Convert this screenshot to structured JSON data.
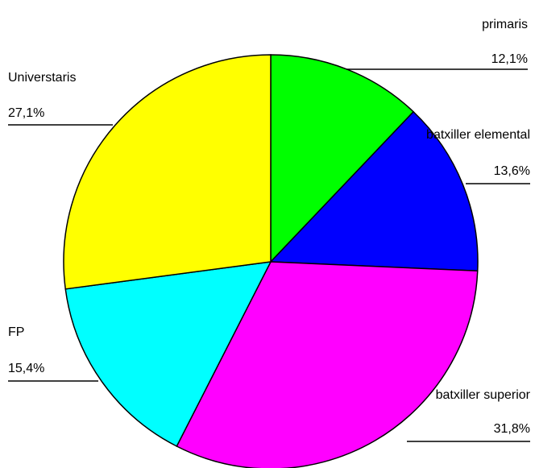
{
  "chart_data": {
    "type": "pie",
    "title": "",
    "start_angle_deg": 0,
    "direction": "clockwise",
    "slices": [
      {
        "name": "primaris",
        "value": 12.1,
        "label": "12,1%",
        "color": "#00ff00"
      },
      {
        "name": "batxiller elemental",
        "value": 13.6,
        "label": "13,6%",
        "color": "#0000ff"
      },
      {
        "name": "batxiller superior",
        "value": 31.8,
        "label": "31,8%",
        "color": "#ff00ff"
      },
      {
        "name": "FP",
        "value": 15.4,
        "label": "15,4%",
        "color": "#00ffff"
      },
      {
        "name": "Universtaris",
        "value": 27.1,
        "label": "27,1%",
        "color": "#ffff00"
      }
    ]
  }
}
